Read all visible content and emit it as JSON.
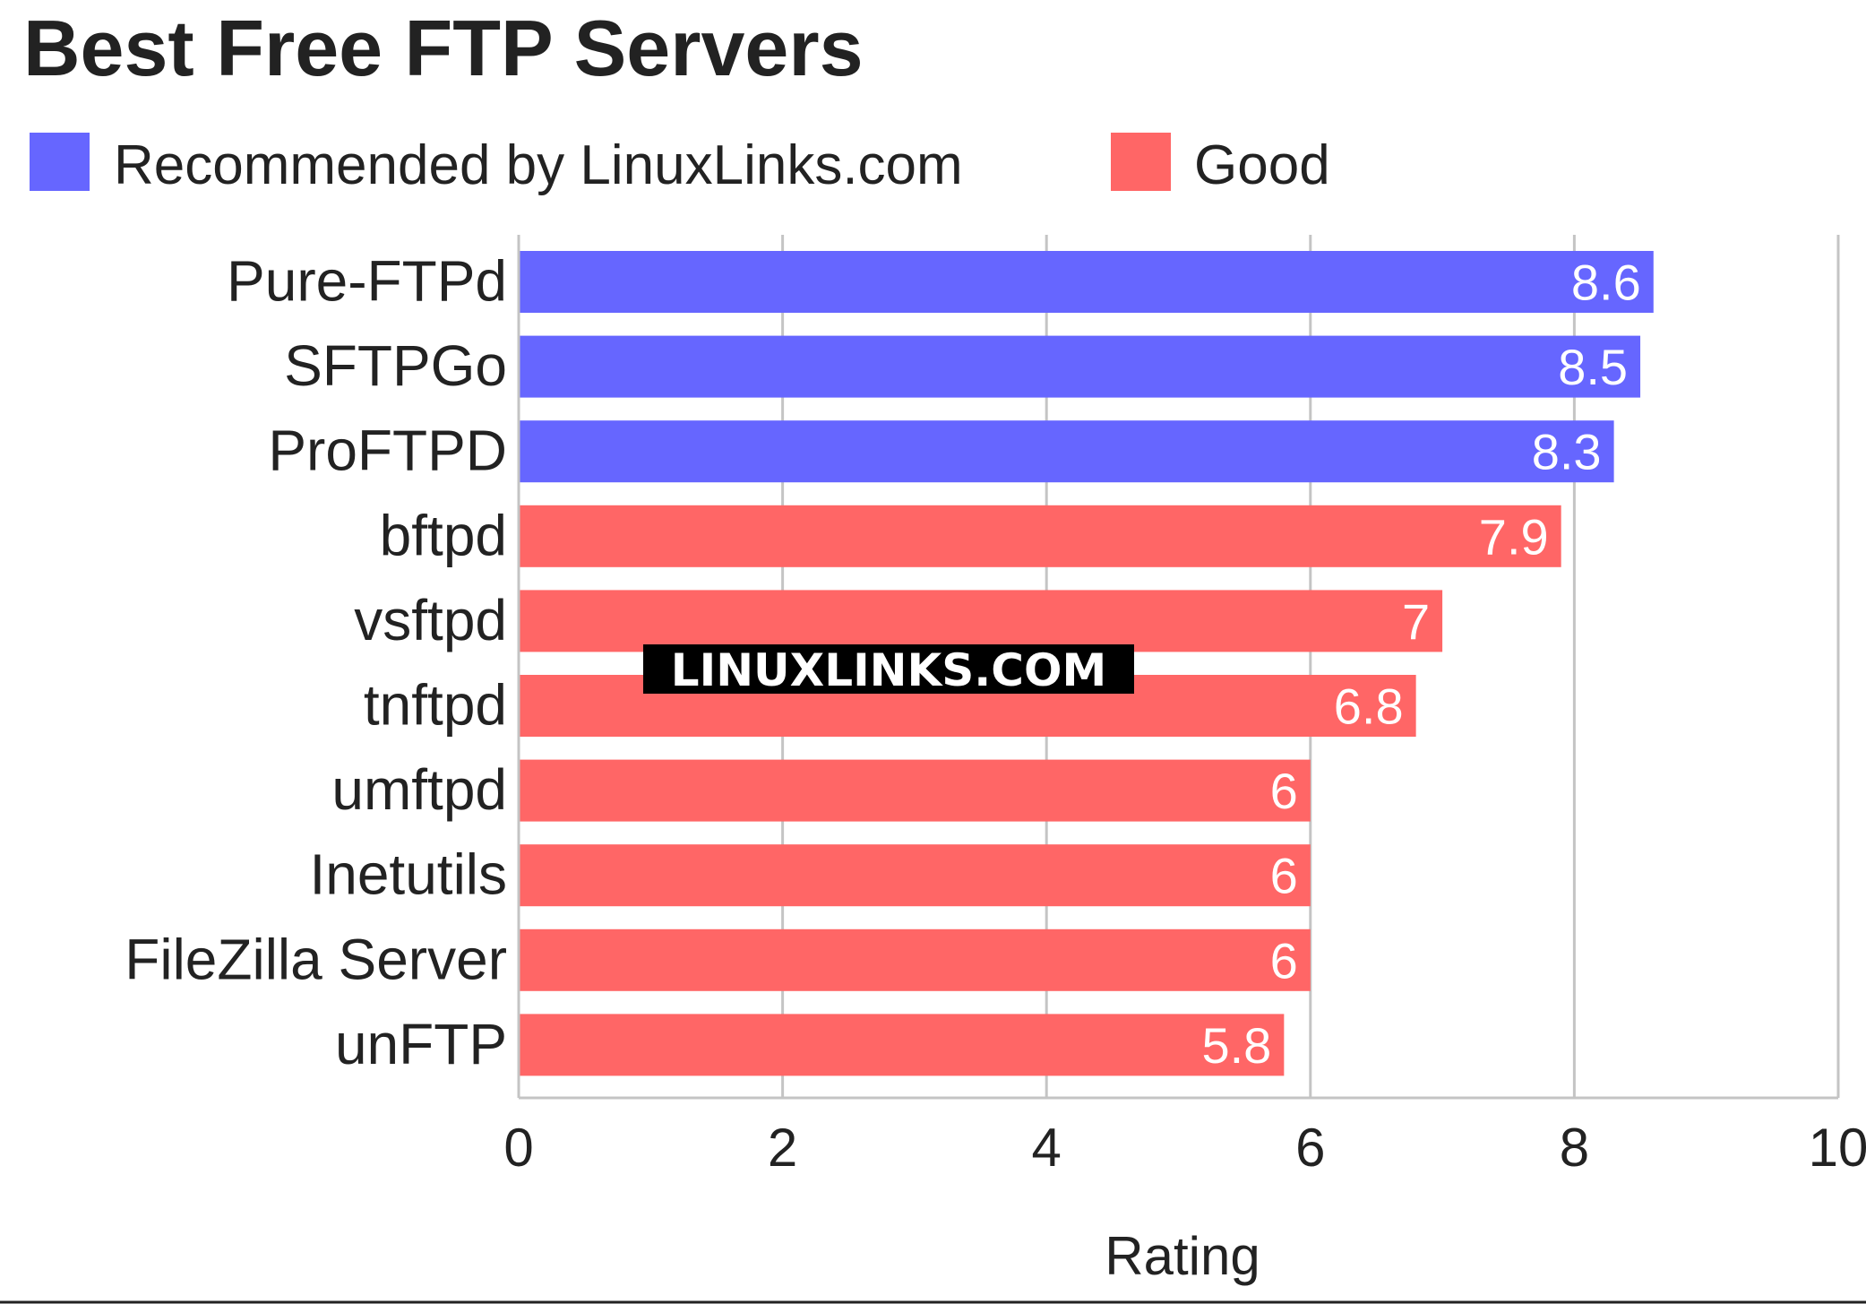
{
  "chart_data": {
    "type": "bar",
    "orientation": "horizontal",
    "title": "Best Free FTP Servers",
    "xlabel": "Rating",
    "ylabel": "",
    "xlim": [
      0,
      10
    ],
    "xticks": [
      "0",
      "2",
      "4",
      "6",
      "8",
      "10"
    ],
    "grid": true,
    "legend_position": "top-left",
    "legend": [
      {
        "label": "Recommended by LinuxLinks.com",
        "color": "#6666ff"
      },
      {
        "label": "Good",
        "color": "#ff6666"
      }
    ],
    "categories": [
      "Pure-FTPd",
      "SFTPGo",
      "ProFTPD",
      "bftpd",
      "vsftpd",
      "tnftpd",
      "umftpd",
      "Inetutils",
      "FileZilla Server",
      "unFTP"
    ],
    "values": [
      8.6,
      8.5,
      8.3,
      7.9,
      7,
      6.8,
      6,
      6,
      6,
      5.8
    ],
    "value_labels": [
      "8.6",
      "8.5",
      "8.3",
      "7.9",
      "7",
      "6.8",
      "6",
      "6",
      "6",
      "5.8"
    ],
    "group": [
      0,
      0,
      0,
      1,
      1,
      1,
      1,
      1,
      1,
      1
    ]
  },
  "watermark": "LINUXLINKS.COM"
}
